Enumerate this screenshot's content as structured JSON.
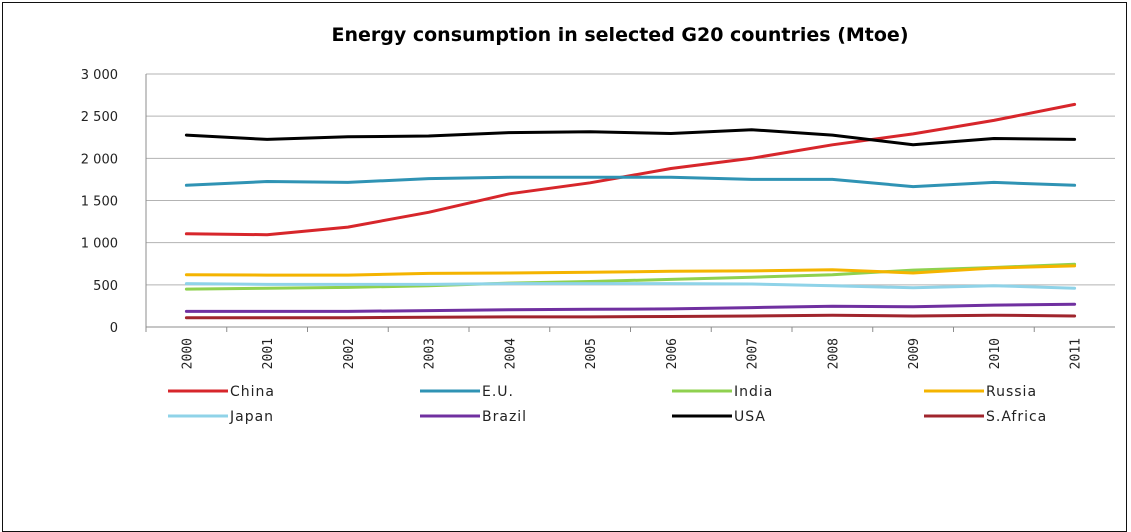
{
  "chart_data": {
    "type": "line",
    "title": "Energy consumption in selected G20 countries (Mtoe)",
    "xlabel": "",
    "ylabel": "",
    "x": [
      "2000",
      "2001",
      "2002",
      "2003",
      "2004",
      "2005",
      "2006",
      "2007",
      "2008",
      "2009",
      "2010",
      "2011"
    ],
    "ylim": [
      0,
      3000
    ],
    "yticks": [
      0,
      500,
      1000,
      1500,
      2000,
      2500,
      3000
    ],
    "ytick_labels": [
      "0",
      "500",
      "1 000",
      "1 500",
      "2 000",
      "2 500",
      "3 000"
    ],
    "grid": true,
    "legend_position": "bottom",
    "series": [
      {
        "name": "China",
        "color": "#d7262b",
        "values": [
          1105,
          1095,
          1185,
          1360,
          1580,
          1710,
          1880,
          2000,
          2160,
          2290,
          2450,
          2640
        ]
      },
      {
        "name": "E.U.",
        "color": "#2f93b4",
        "values": [
          1680,
          1725,
          1715,
          1760,
          1775,
          1775,
          1775,
          1750,
          1750,
          1665,
          1715,
          1680
        ]
      },
      {
        "name": "India",
        "color": "#8fd14f",
        "values": [
          450,
          460,
          470,
          490,
          520,
          540,
          565,
          590,
          620,
          675,
          705,
          745
        ]
      },
      {
        "name": "Russia",
        "color": "#f4b400",
        "values": [
          620,
          615,
          615,
          635,
          640,
          650,
          660,
          665,
          680,
          640,
          700,
          725
        ]
      },
      {
        "name": "Japan",
        "color": "#8fd3e8",
        "values": [
          515,
          505,
          505,
          505,
          515,
          515,
          515,
          510,
          490,
          465,
          490,
          460
        ]
      },
      {
        "name": "Brazil",
        "color": "#7030a0",
        "values": [
          185,
          185,
          185,
          195,
          205,
          210,
          215,
          230,
          245,
          240,
          260,
          270
        ]
      },
      {
        "name": "USA",
        "color": "#000000",
        "values": [
          2275,
          2225,
          2255,
          2265,
          2305,
          2315,
          2295,
          2340,
          2275,
          2160,
          2235,
          2225
        ]
      },
      {
        "name": "S.Africa",
        "color": "#a0252d",
        "values": [
          110,
          110,
          110,
          115,
          120,
          120,
          125,
          130,
          140,
          130,
          140,
          130
        ]
      }
    ]
  }
}
